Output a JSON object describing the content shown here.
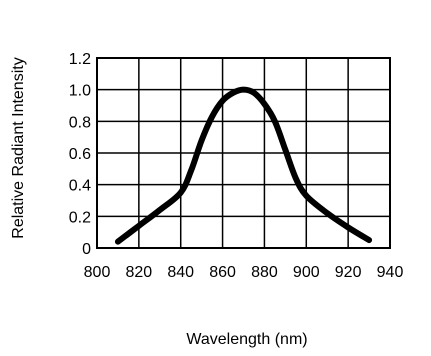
{
  "chart_data": {
    "type": "line",
    "title": "",
    "xlabel": "Wavelength (nm)",
    "ylabel": "Relative Radiant Intensity",
    "xlim": [
      800,
      940
    ],
    "ylim": [
      0,
      1.2
    ],
    "grid": true,
    "x_ticks": [
      "800",
      "820",
      "840",
      "860",
      "880",
      "900",
      "920",
      "940"
    ],
    "y_ticks": [
      "0",
      "0.2",
      "0.4",
      "0.6",
      "0.8",
      "1.0",
      "1.2"
    ],
    "series": [
      {
        "color": "#000000",
        "x": [
          810,
          820,
          830,
          840,
          845,
          850,
          855,
          860,
          865,
          870,
          875,
          880,
          885,
          890,
          895,
          900,
          910,
          920,
          930
        ],
        "y": [
          0.04,
          0.14,
          0.24,
          0.35,
          0.49,
          0.68,
          0.83,
          0.93,
          0.98,
          1.0,
          0.98,
          0.91,
          0.8,
          0.62,
          0.44,
          0.33,
          0.22,
          0.13,
          0.05
        ]
      }
    ]
  }
}
